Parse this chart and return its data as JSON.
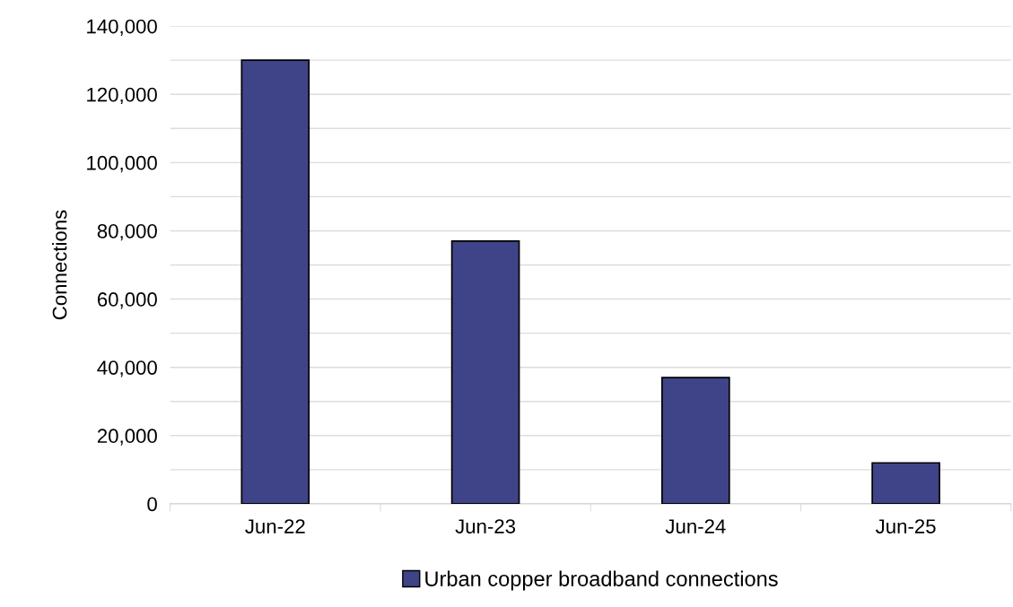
{
  "chart_data": {
    "type": "bar",
    "ylabel": "Connections",
    "categories": [
      "Jun-22",
      "Jun-23",
      "Jun-24",
      "Jun-25"
    ],
    "series": [
      {
        "name": "Urban copper broadband connections",
        "color": "#3f4488",
        "values": [
          130000,
          77000,
          37000,
          12000
        ]
      }
    ],
    "ylim": [
      0,
      140000
    ],
    "yticks": [
      0,
      {
        "value": 10000,
        "label": null
      },
      {
        "value": 20000,
        "label": "20,000"
      },
      {
        "value": 30000,
        "label": null
      },
      {
        "value": 40000,
        "label": "40,000"
      },
      {
        "value": 50000,
        "label": null
      },
      {
        "value": 60000,
        "label": "60,000"
      },
      {
        "value": 70000,
        "label": null
      },
      {
        "value": 80000,
        "label": "80,000"
      },
      {
        "value": 90000,
        "label": null
      },
      {
        "value": 100000,
        "label": "100,000"
      },
      {
        "value": 110000,
        "label": null
      },
      {
        "value": 120000,
        "label": "120,000"
      },
      {
        "value": 130000,
        "label": null
      },
      {
        "value": 140000,
        "label": "140,000"
      }
    ],
    "grid": "y",
    "legend": "bottom"
  }
}
